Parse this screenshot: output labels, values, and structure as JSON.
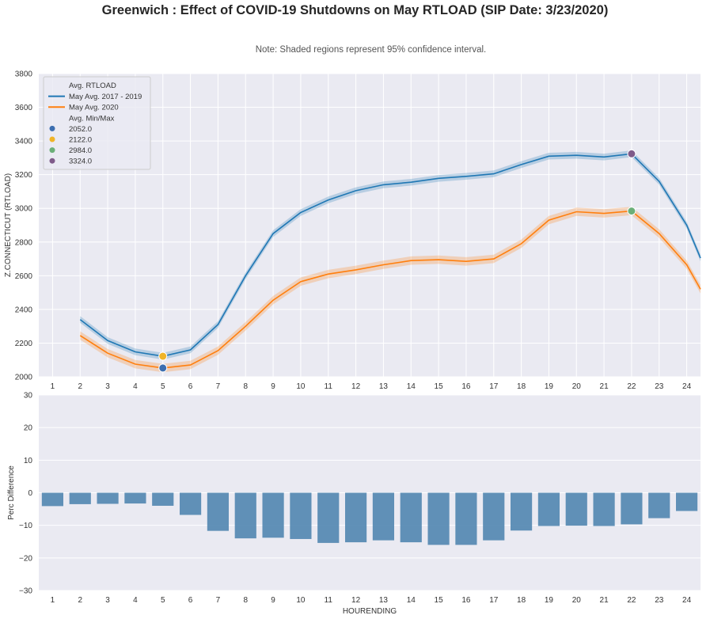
{
  "figure": {
    "title": "Greenwich : Effect of COVID-19 Shutdowns on May RTLOAD (SIP Date: 3/23/2020)",
    "note": "Note: Shaded regions represent 95% confidence interval."
  },
  "colors": {
    "background": "#EAEAF2",
    "grid": "#FFFFFF",
    "series_2017_2019": "#1F77B4",
    "series_2020": "#FF7F0E",
    "bars": "#4C83AE",
    "marker_2052": "#3C6EB0",
    "marker_2122": "#F0B428",
    "marker_2984": "#6BAF78",
    "marker_3324": "#7F5B8A"
  },
  "chart_data": [
    {
      "type": "line",
      "ylabel": "Z.CONNECTICUT (RTLOAD)",
      "xlabel": "",
      "ylim": [
        2000,
        3800
      ],
      "yticks": [
        2000,
        2200,
        2400,
        2600,
        2800,
        3000,
        3200,
        3400,
        3600,
        3800
      ],
      "xlim": [
        0.5,
        24.5
      ],
      "xticks": [
        1,
        2,
        3,
        4,
        5,
        6,
        7,
        8,
        9,
        10,
        11,
        12,
        13,
        14,
        15,
        16,
        17,
        18,
        19,
        20,
        21,
        22,
        23,
        24
      ],
      "legend": {
        "position": "top-left",
        "line_title": "Avg. RTLOAD",
        "marker_title": "Avg. Min/Max"
      },
      "series": [
        {
          "name": "May Avg. 2017 - 2019",
          "x": [
            2,
            3,
            4,
            5,
            6,
            7,
            8,
            9,
            10,
            11,
            12,
            13,
            14,
            15,
            16,
            17,
            18,
            19,
            20,
            21,
            22,
            23,
            24,
            24.5
          ],
          "values": [
            2340,
            2215,
            2148,
            2122,
            2160,
            2310,
            2600,
            2850,
            2975,
            3050,
            3105,
            3140,
            3155,
            3178,
            3190,
            3205,
            3260,
            3310,
            3315,
            3305,
            3324,
            3160,
            2900,
            2705
          ],
          "ci": 20
        },
        {
          "name": "May Avg. 2020",
          "x": [
            2,
            3,
            4,
            5,
            6,
            7,
            8,
            9,
            10,
            11,
            12,
            13,
            14,
            15,
            16,
            17,
            18,
            19,
            20,
            21,
            22,
            23,
            24,
            24.5
          ],
          "values": [
            2245,
            2140,
            2075,
            2052,
            2070,
            2155,
            2300,
            2455,
            2565,
            2610,
            2635,
            2665,
            2690,
            2695,
            2685,
            2700,
            2790,
            2930,
            2980,
            2970,
            2984,
            2850,
            2665,
            2520
          ],
          "ci": 25
        }
      ],
      "markers": [
        {
          "label": "2052.0",
          "x": 5,
          "y": 2052
        },
        {
          "label": "2122.0",
          "x": 5,
          "y": 2122
        },
        {
          "label": "2984.0",
          "x": 22,
          "y": 2984
        },
        {
          "label": "3324.0",
          "x": 22,
          "y": 3324
        }
      ]
    },
    {
      "type": "bar",
      "ylabel": "Perc Difference",
      "xlabel": "HOURENDING",
      "ylim": [
        -30,
        30
      ],
      "yticks": [
        -30,
        -20,
        -10,
        0,
        10,
        20,
        30
      ],
      "categories": [
        "1",
        "2",
        "3",
        "4",
        "5",
        "6",
        "7",
        "8",
        "9",
        "10",
        "11",
        "12",
        "13",
        "14",
        "15",
        "16",
        "17",
        "18",
        "19",
        "20",
        "21",
        "22",
        "23",
        "24"
      ],
      "values": [
        -4.1,
        -3.5,
        -3.4,
        -3.3,
        -4.0,
        -6.8,
        -11.7,
        -14.0,
        -13.8,
        -14.2,
        -15.4,
        -15.2,
        -14.6,
        -15.2,
        -16.0,
        -16.0,
        -14.6,
        -11.6,
        -10.2,
        -10.1,
        -10.2,
        -9.7,
        -7.8,
        -5.6
      ]
    }
  ]
}
